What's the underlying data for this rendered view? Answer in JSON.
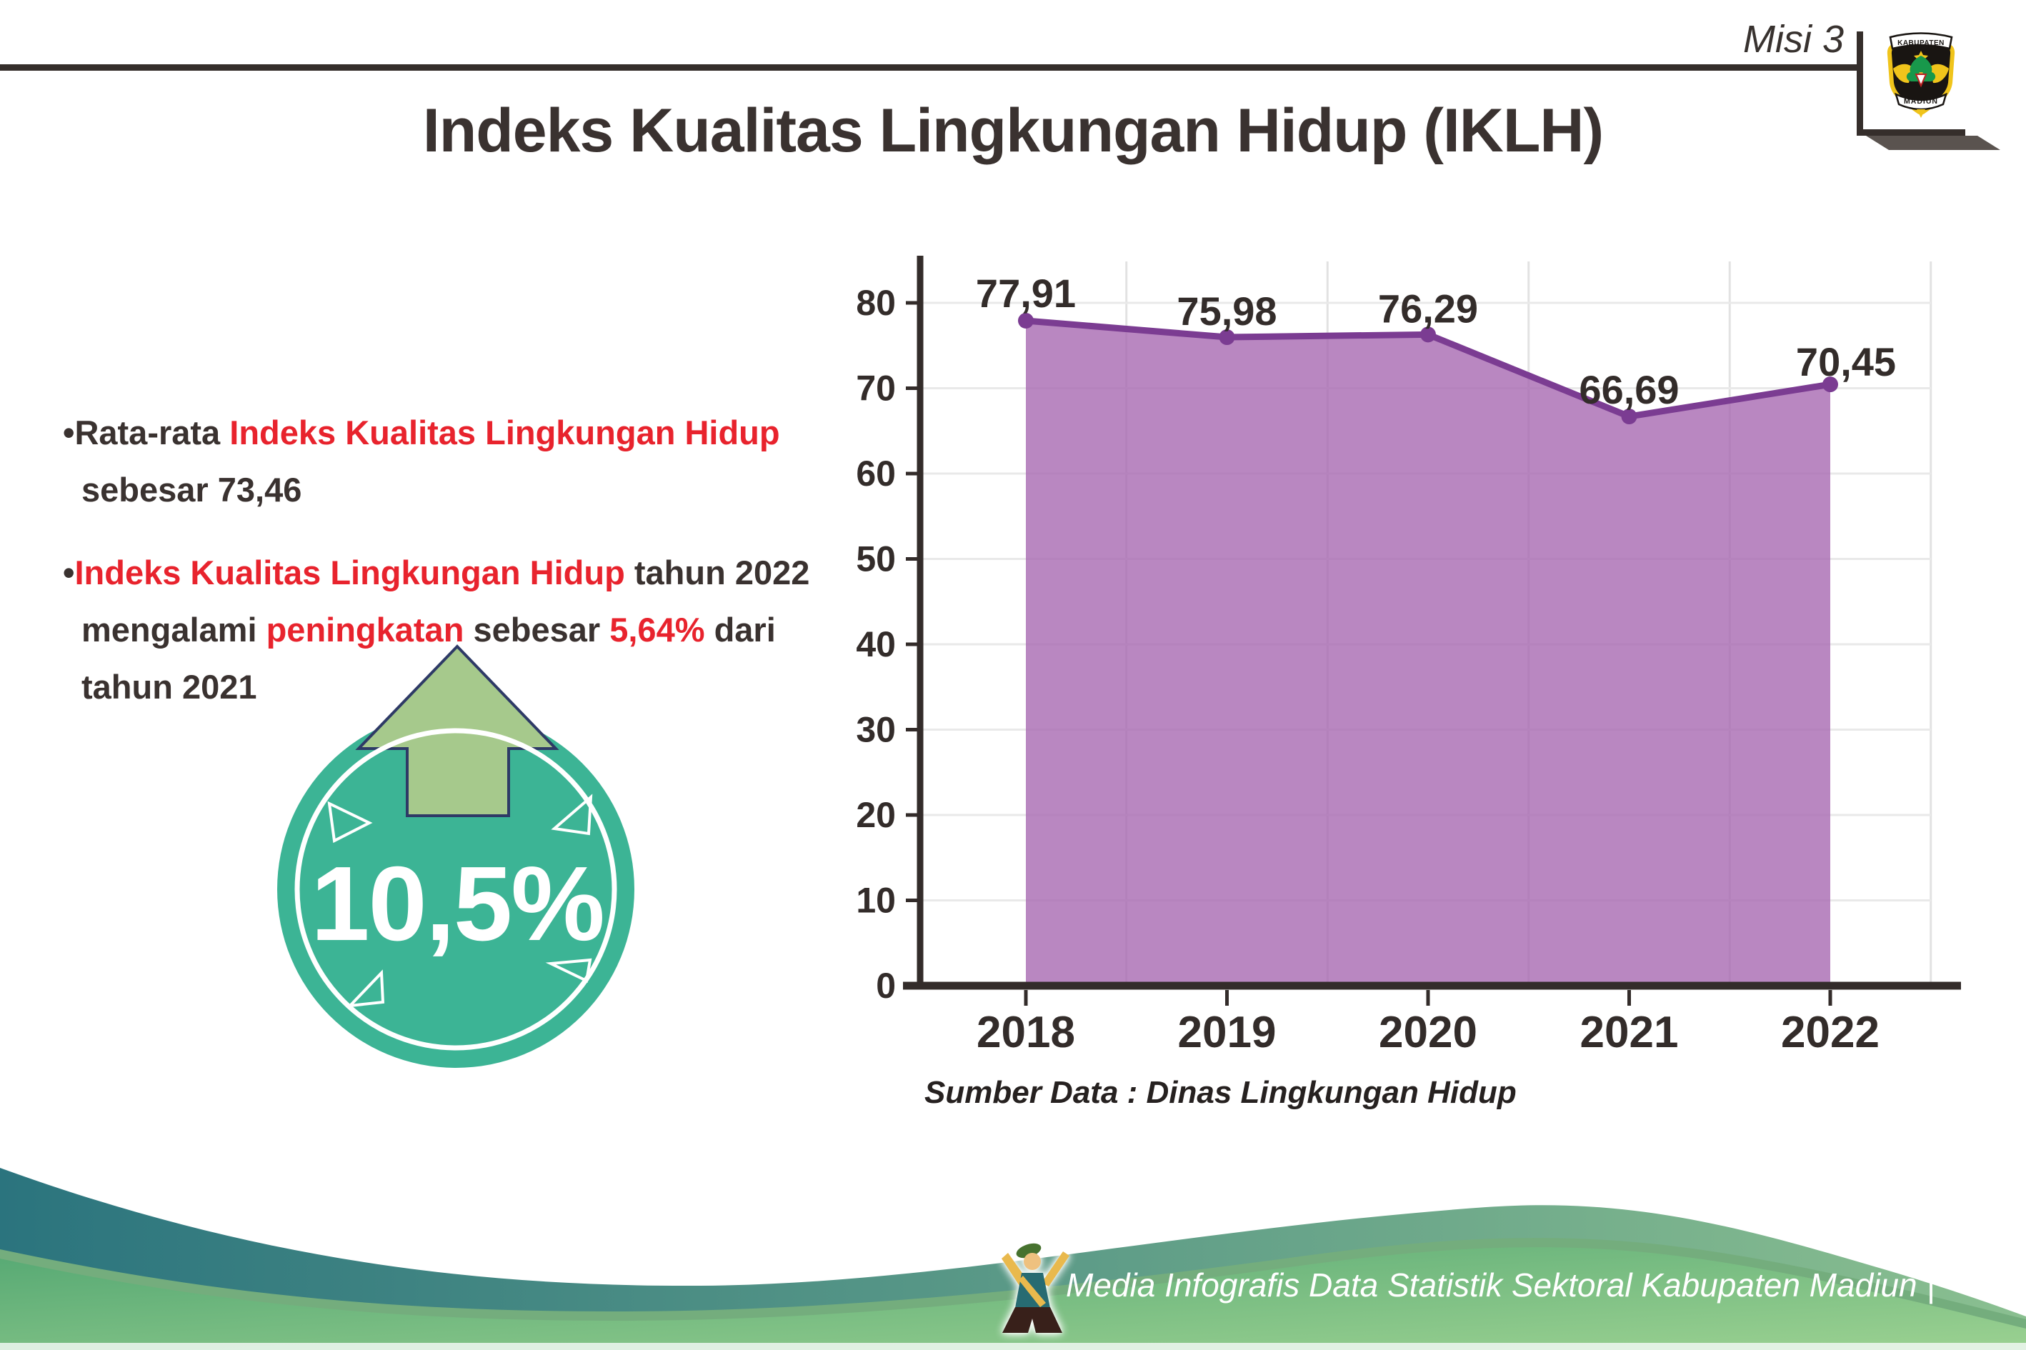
{
  "header": {
    "misi_label": "Misi 3",
    "title": "Indeks Kualitas Lingkungan Hidup (IKLH)",
    "logo": {
      "top_text": "KABUPATEN",
      "bottom_text": "MADIUN"
    }
  },
  "insights": {
    "bullets": [
      {
        "lines": [
          [
            {
              "t": "•Rata-rata ",
              "c": "dark"
            },
            {
              "t": "Indeks Kualitas Lingkungan Hidup",
              "c": "red"
            }
          ],
          [
            {
              "t": "sebesar 73,46",
              "c": "dark"
            }
          ]
        ]
      },
      {
        "lines": [
          [
            {
              "t": "•",
              "c": "dark"
            },
            {
              "t": "Indeks Kualitas Lingkungan Hidup",
              "c": "red"
            },
            {
              "t": " tahun 2022",
              "c": "dark"
            }
          ],
          [
            {
              "t": "mengalami ",
              "c": "dark"
            },
            {
              "t": "peningkatan",
              "c": "red"
            },
            {
              "t": " sebesar ",
              "c": "dark"
            },
            {
              "t": "5,64%",
              "c": "red"
            },
            {
              "t": " dari",
              "c": "dark"
            }
          ],
          [
            {
              "t": "tahun 2021",
              "c": "dark"
            }
          ]
        ]
      }
    ]
  },
  "badge": {
    "value": "10,5%",
    "circle_color": "#3cb495",
    "arrow_color": "#a6c98c"
  },
  "chart_data": {
    "type": "area",
    "categories": [
      "2018",
      "2019",
      "2020",
      "2021",
      "2022"
    ],
    "values": [
      77.91,
      75.98,
      76.29,
      66.69,
      70.45
    ],
    "value_labels": [
      "77,91",
      "75,98",
      "76,29",
      "66,69",
      "70,45"
    ],
    "ylim": [
      0,
      80
    ],
    "ytick_step": 10,
    "grid": true,
    "legend": "none",
    "xlabel": "",
    "ylabel": "",
    "area_color": "rgba(167,105,177,0.8)",
    "line_color": "#7b3c92",
    "source_note": "Sumber Data : Dinas Lingkungan Hidup"
  },
  "footer": {
    "credit": "Media Infografis Data Statistik Sektoral Kabupaten Madiun |"
  },
  "colors": {
    "red": "#e8232d",
    "dark": "#3a3230",
    "axis": "#332c2a",
    "footer_teal": "#2b747e",
    "footer_green": "#55a873"
  }
}
